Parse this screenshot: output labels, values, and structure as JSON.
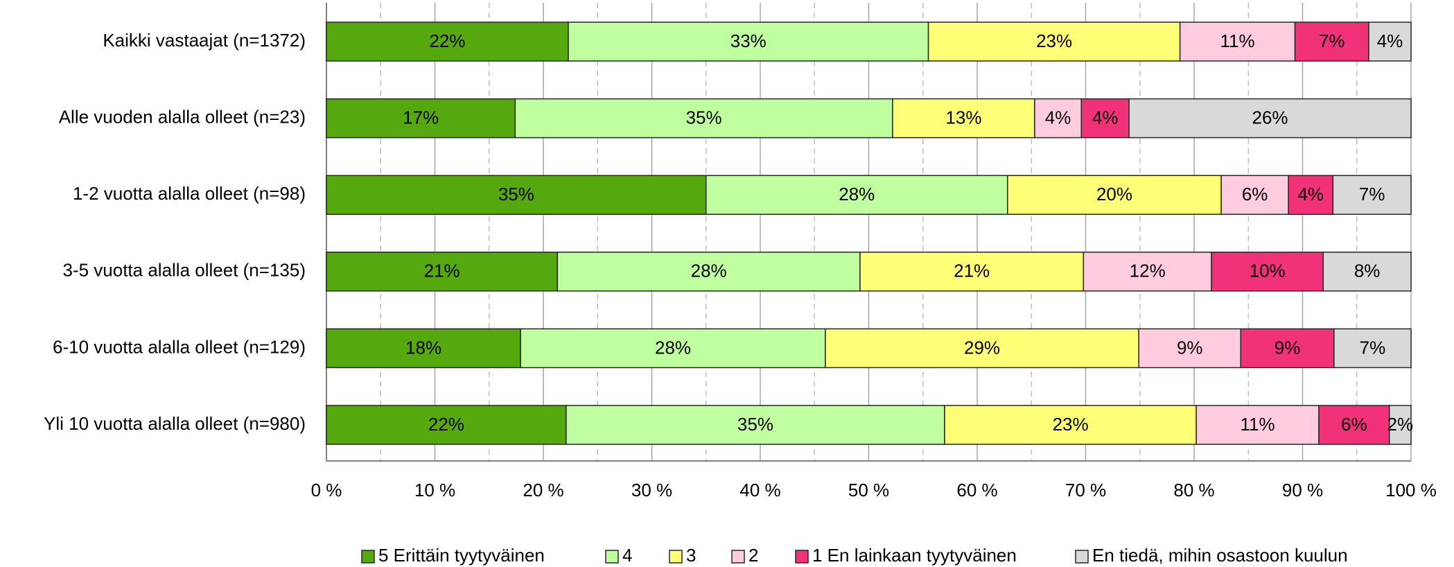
{
  "chart_data": {
    "type": "stacked-bar-horizontal",
    "categories": [
      "Kaikki vastaajat (n=1372)",
      "Alle vuoden alalla olleet (n=23)",
      "1-2 vuotta alalla olleet (n=98)",
      "3-5 vuotta alalla olleet (n=135)",
      "6-10 vuotta alalla olleet (n=129)",
      "Yli 10 vuotta alalla olleet (n=980)"
    ],
    "series": [
      {
        "name": "5 Erittäin tyytyväinen",
        "color": "#56a80f",
        "values": [
          22.3,
          17.4,
          35.0,
          21.3,
          17.9,
          22.1
        ],
        "value_labels": [
          "22%",
          "17%",
          "35%",
          "21%",
          "18%",
          "22%"
        ]
      },
      {
        "name": "4",
        "color": "#bfff9f",
        "values": [
          33.2,
          34.8,
          27.8,
          27.9,
          28.1,
          34.9
        ],
        "value_labels": [
          "33%",
          "35%",
          "28%",
          "28%",
          "28%",
          "35%"
        ]
      },
      {
        "name": "3",
        "color": "#ffff77",
        "values": [
          23.2,
          13.1,
          19.7,
          20.6,
          28.9,
          23.2
        ],
        "value_labels": [
          "23%",
          "13%",
          "20%",
          "21%",
          "29%",
          "23%"
        ]
      },
      {
        "name": "2",
        "color": "#ffccdf",
        "values": [
          10.6,
          4.3,
          6.2,
          11.8,
          9.4,
          11.3
        ],
        "value_labels": [
          "11%",
          "4%",
          "6%",
          "12%",
          "9%",
          "11%"
        ]
      },
      {
        "name": "1 En lainkaan tyytyväinen",
        "color": "#f23278",
        "values": [
          6.8,
          4.4,
          4.1,
          10.3,
          8.6,
          6.5
        ],
        "value_labels": [
          "7%",
          "4%",
          "4%",
          "10%",
          "9%",
          "6%"
        ]
      },
      {
        "name": "En tiedä, mihin osastoon kuulun",
        "color": "#d9d9d9",
        "values": [
          3.9,
          26.0,
          7.2,
          8.1,
          7.1,
          2.0
        ],
        "value_labels": [
          "4%",
          "26%",
          "7%",
          "8%",
          "7%",
          "2%"
        ]
      }
    ],
    "xlim": [
      0,
      100
    ],
    "xticks": [
      {
        "value": 0,
        "label": "0 %"
      },
      {
        "value": 10,
        "label": "10 %"
      },
      {
        "value": 20,
        "label": "20 %"
      },
      {
        "value": 30,
        "label": "30 %"
      },
      {
        "value": 40,
        "label": "40 %"
      },
      {
        "value": 50,
        "label": "50 %"
      },
      {
        "value": 60,
        "label": "60 %"
      },
      {
        "value": 70,
        "label": "70 %"
      },
      {
        "value": 80,
        "label": "80 %"
      },
      {
        "value": 90,
        "label": "90 %"
      },
      {
        "value": 100,
        "label": "100 %"
      }
    ],
    "grid": true,
    "legend": "bottom"
  }
}
